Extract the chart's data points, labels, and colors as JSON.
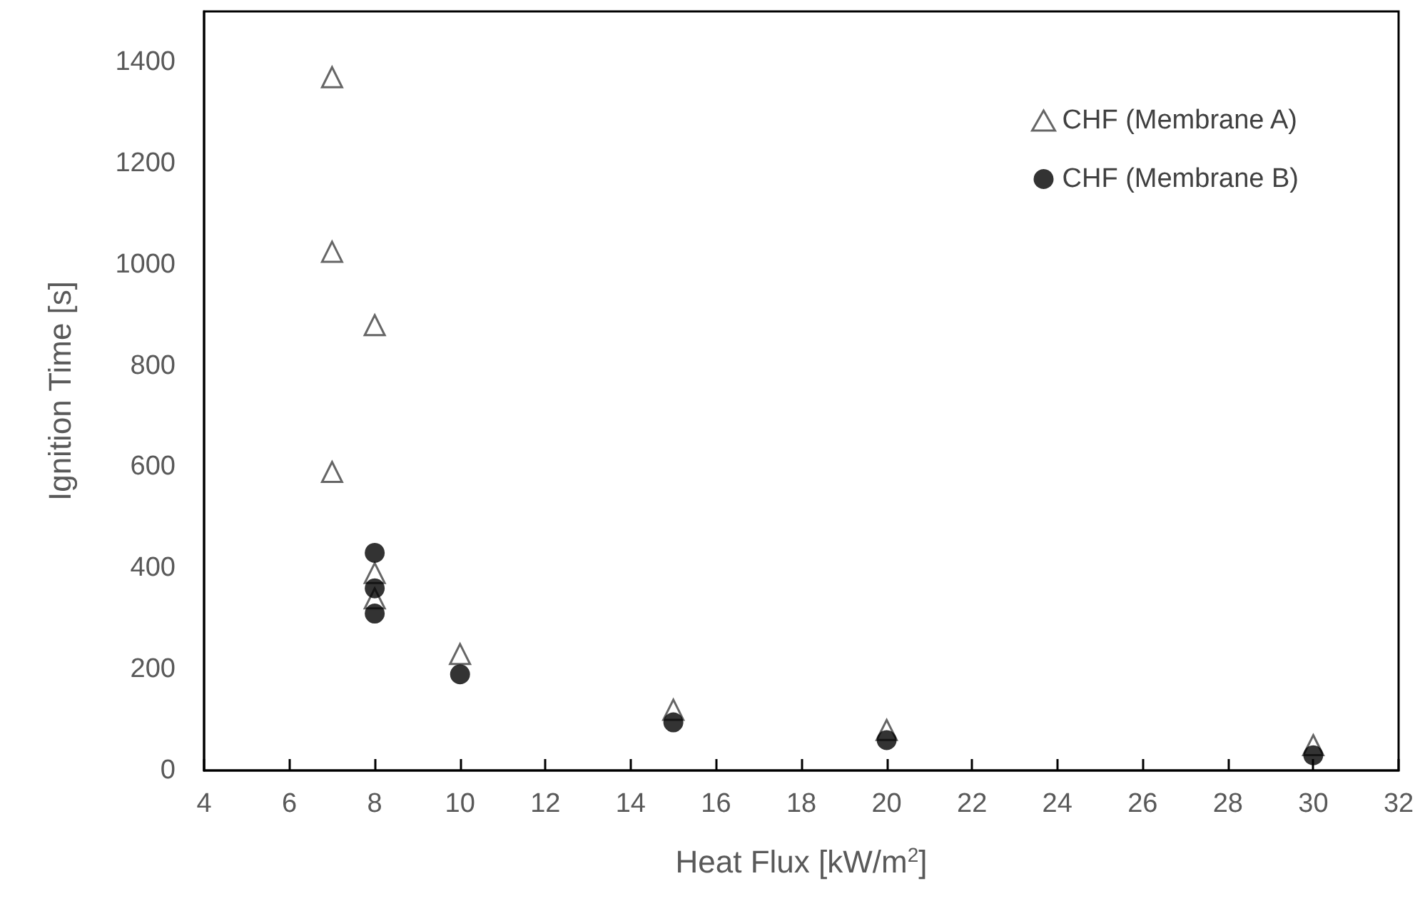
{
  "chart_data": {
    "type": "scatter",
    "xlabel": "Heat Flux [kW/m$^{2}$]",
    "ylabel": "Ignition Time [s]",
    "xlim": [
      4,
      32
    ],
    "xticks": [
      4,
      6,
      8,
      10,
      12,
      14,
      16,
      18,
      20,
      22,
      24,
      26,
      28,
      30,
      32
    ],
    "ylim": [
      0,
      1500
    ],
    "yticks": [
      0,
      200,
      400,
      600,
      800,
      1000,
      1200,
      1400
    ],
    "grid": false,
    "legend": "top right",
    "series": [
      {
        "name": "CHF (Membrane A)",
        "color": "#404040",
        "marker": "triangle",
        "x": [
          7,
          7,
          7,
          8,
          8,
          8,
          10,
          15,
          20,
          30
        ],
        "values": [
          1370,
          1025,
          590,
          880,
          390,
          340,
          230,
          120,
          80,
          50
        ]
      },
      {
        "name": "CHF (Membrane B)",
        "color": "#000000",
        "marker": "circle",
        "x": [
          8,
          8,
          8,
          10,
          15,
          20,
          30
        ],
        "values": [
          430,
          360,
          310,
          190,
          95,
          60,
          30
        ]
      }
    ]
  }
}
